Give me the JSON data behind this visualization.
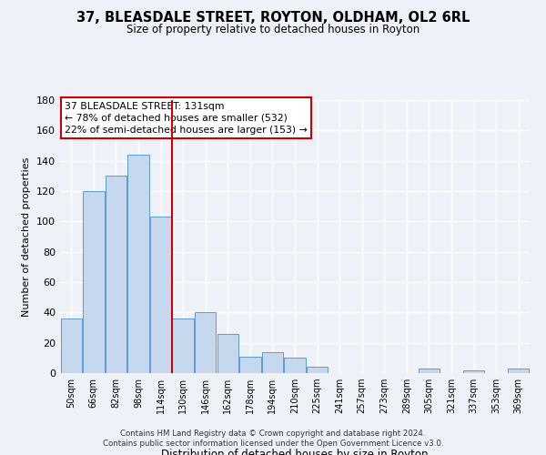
{
  "title": "37, BLEASDALE STREET, ROYTON, OLDHAM, OL2 6RL",
  "subtitle": "Size of property relative to detached houses in Royton",
  "xlabel": "Distribution of detached houses by size in Royton",
  "ylabel": "Number of detached properties",
  "bar_labels": [
    "50sqm",
    "66sqm",
    "82sqm",
    "98sqm",
    "114sqm",
    "130sqm",
    "146sqm",
    "162sqm",
    "178sqm",
    "194sqm",
    "210sqm",
    "225sqm",
    "241sqm",
    "257sqm",
    "273sqm",
    "289sqm",
    "305sqm",
    "321sqm",
    "337sqm",
    "353sqm",
    "369sqm"
  ],
  "bar_values": [
    36,
    120,
    130,
    144,
    103,
    36,
    40,
    26,
    11,
    14,
    10,
    4,
    0,
    0,
    0,
    0,
    3,
    0,
    2,
    0,
    3
  ],
  "bar_color": "#c5d8ee",
  "bar_edge_color": "#5b9bd5",
  "vline_color": "#cc0000",
  "annotation_title": "37 BLEASDALE STREET: 131sqm",
  "annotation_line1": "← 78% of detached houses are smaller (532)",
  "annotation_line2": "22% of semi-detached houses are larger (153) →",
  "annotation_box_color": "#ffffff",
  "annotation_box_edge": "#cc0000",
  "ylim": [
    0,
    180
  ],
  "yticks": [
    0,
    20,
    40,
    60,
    80,
    100,
    120,
    140,
    160,
    180
  ],
  "footer_line1": "Contains HM Land Registry data © Crown copyright and database right 2024.",
  "footer_line2": "Contains public sector information licensed under the Open Government Licence v3.0.",
  "bg_color": "#eef2f8"
}
